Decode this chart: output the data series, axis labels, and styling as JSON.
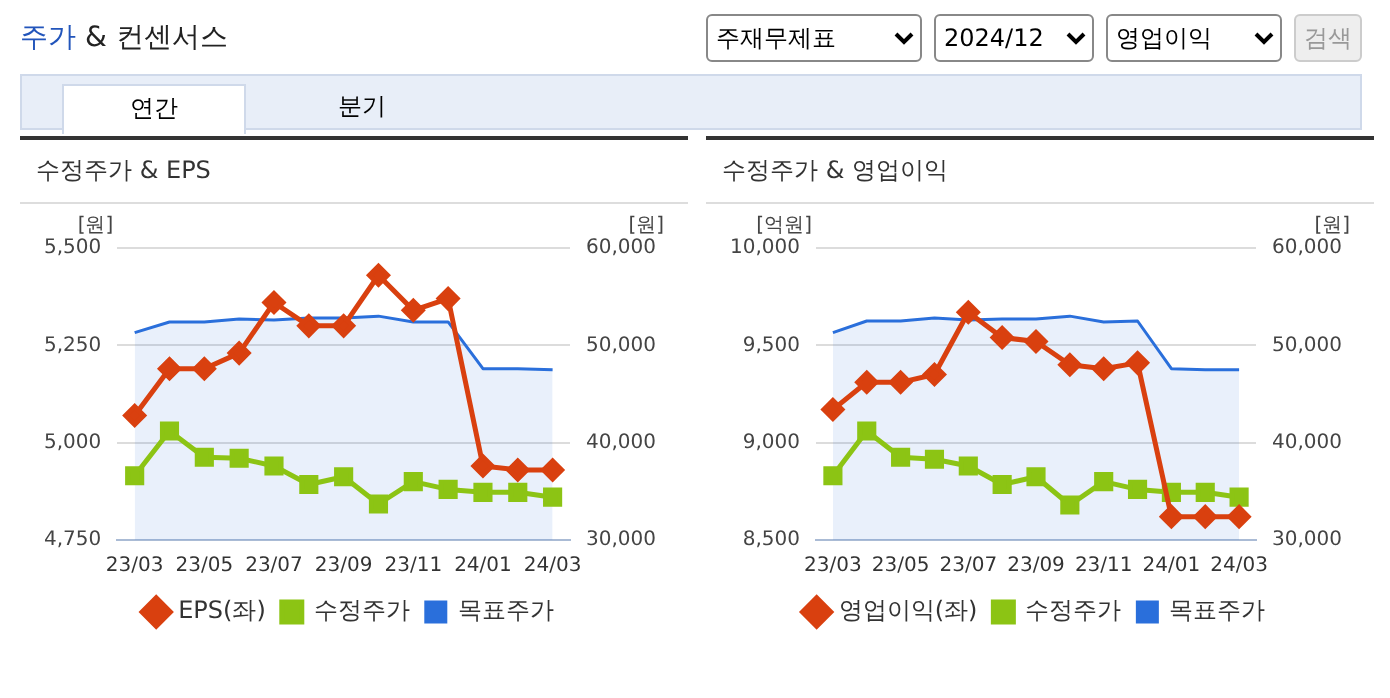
{
  "chart_data": [
    {
      "type": "other",
      "title": "주가 & 컨센서스",
      "annotations": [
        "주재무제표",
        "2024/12",
        "영업이익",
        "검색",
        "연간",
        "분기"
      ]
    },
    {
      "type": "line",
      "title": "수정주가 & EPS",
      "ylabel": "[원]",
      "y2label": "[원]",
      "categories": [
        "23/03",
        null,
        "23/05",
        null,
        "23/07",
        null,
        "23/09",
        null,
        "23/11",
        null,
        "24/01",
        null,
        "24/03"
      ],
      "ylim": [
        4750,
        5500
      ],
      "yticks": [
        {
          "value": 4750,
          "label": "4,750"
        },
        {
          "value": 5000,
          "label": "5,000"
        },
        {
          "value": 5250,
          "label": "5,250"
        },
        {
          "value": 5500,
          "label": "5,500"
        }
      ],
      "y2lim": [
        30000,
        60000
      ],
      "y2ticks": [
        {
          "value": 30000,
          "label": "30,000"
        },
        {
          "value": 40000,
          "label": "40,000"
        },
        {
          "value": 50000,
          "label": "50,000"
        },
        {
          "value": 60000,
          "label": "60,000"
        }
      ],
      "grid": "y",
      "legend": "bottom",
      "series": [
        {
          "name": "목표주가",
          "type": "area",
          "axis": "y2",
          "color": "#2a6fdb",
          "marker": "none",
          "values": [
            51300,
            52400,
            52400,
            52700,
            52600,
            52800,
            52800,
            53000,
            52400,
            52400,
            47600,
            47600,
            47500
          ]
        },
        {
          "name": "EPS(좌)",
          "type": "line",
          "axis": "y",
          "color": "#d9400f",
          "marker": "diamond",
          "values": [
            5070,
            5190,
            5190,
            5230,
            5360,
            5300,
            5300,
            5430,
            5340,
            5370,
            4940,
            4930,
            4930
          ]
        },
        {
          "name": "수정주가",
          "type": "line",
          "axis": "y2",
          "color": "#8cc414",
          "marker": "square",
          "values": [
            36600,
            41200,
            38500,
            38400,
            37600,
            35700,
            36500,
            33700,
            36000,
            35200,
            34900,
            34900,
            34400
          ]
        }
      ]
    },
    {
      "type": "line",
      "title": "수정주가 & 영업이익",
      "ylabel": "[억원]",
      "y2label": "[원]",
      "categories": [
        "23/03",
        null,
        "23/05",
        null,
        "23/07",
        null,
        "23/09",
        null,
        "23/11",
        null,
        "24/01",
        null,
        "24/03"
      ],
      "ylim": [
        8500,
        10000
      ],
      "yticks": [
        {
          "value": 8500,
          "label": "8,500"
        },
        {
          "value": 9000,
          "label": "9,000"
        },
        {
          "value": 9500,
          "label": "9,500"
        },
        {
          "value": 10000,
          "label": "10,000"
        }
      ],
      "y2lim": [
        30000,
        60000
      ],
      "y2ticks": [
        {
          "value": 30000,
          "label": "30,000"
        },
        {
          "value": 40000,
          "label": "40,000"
        },
        {
          "value": 50000,
          "label": "50,000"
        },
        {
          "value": 60000,
          "label": "60,000"
        }
      ],
      "grid": "y",
      "legend": "bottom",
      "series": [
        {
          "name": "목표주가",
          "type": "area",
          "axis": "y2",
          "color": "#2a6fdb",
          "marker": "none",
          "values": [
            51300,
            52500,
            52500,
            52800,
            52600,
            52700,
            52700,
            53000,
            52400,
            52500,
            47600,
            47500,
            47500
          ]
        },
        {
          "name": "영업이익(좌)",
          "type": "line",
          "axis": "y",
          "color": "#d9400f",
          "marker": "diamond",
          "values": [
            9170,
            9310,
            9310,
            9350,
            9670,
            9540,
            9520,
            9400,
            9380,
            9410,
            8620,
            8620,
            8620
          ]
        },
        {
          "name": "수정주가",
          "type": "line",
          "axis": "y2",
          "color": "#8cc414",
          "marker": "square",
          "values": [
            36600,
            41200,
            38500,
            38300,
            37600,
            35700,
            36500,
            33600,
            36000,
            35200,
            34900,
            34900,
            34400
          ]
        }
      ]
    }
  ]
}
